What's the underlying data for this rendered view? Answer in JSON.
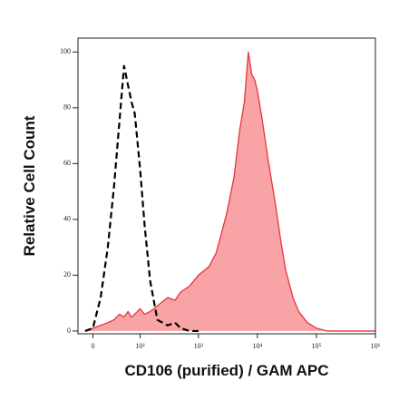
{
  "chart_data": {
    "type": "area",
    "x_label": "CD106 (purified) / GAM APC",
    "y_label": "Relative Cell Count",
    "x": [
      -10,
      0,
      10,
      20,
      30,
      40,
      50,
      60,
      70,
      80,
      100,
      120,
      150,
      200,
      300,
      400,
      500,
      700,
      1000,
      1500,
      2000,
      3000,
      4000,
      5000,
      6000,
      7000,
      8000,
      9000,
      10000,
      12000,
      15000,
      20000,
      25000,
      30000,
      40000,
      50000,
      70000,
      100000,
      150000,
      200000,
      300000,
      1000000
    ],
    "series": [
      {
        "color": "#e8343a",
        "fill": "#f8a4a7",
        "style": "solid",
        "values": [
          0,
          1,
          2,
          3,
          4,
          6,
          5,
          7,
          5,
          6,
          8,
          6,
          7,
          9,
          12,
          11,
          14,
          16,
          20,
          23,
          28,
          42,
          55,
          72,
          82,
          100,
          92,
          90,
          86,
          76,
          62,
          46,
          32,
          22,
          12,
          7,
          3,
          1,
          0,
          0,
          0,
          0
        ]
      },
      {
        "color": "#000000",
        "style": "dashed",
        "values": [
          0,
          1,
          12,
          30,
          52,
          75,
          95,
          88,
          82,
          78,
          58,
          38,
          18,
          4,
          2,
          3,
          1,
          0,
          0,
          null,
          null,
          null,
          null,
          null,
          null,
          null,
          null,
          null,
          null,
          null,
          null,
          null,
          null,
          null,
          null,
          null,
          null,
          null,
          null,
          null,
          null,
          null
        ]
      }
    ],
    "xscale": "asinh",
    "xlim": [
      -20,
      1000000
    ],
    "xticks": [
      0,
      {
        "value": 100,
        "label": "10²"
      },
      {
        "value": 1000,
        "label": "10³"
      },
      {
        "value": 10000,
        "label": "10⁴"
      },
      {
        "value": 100000,
        "label": "10⁵"
      },
      {
        "value": 1000000,
        "label": "10⁶"
      }
    ],
    "ylim": [
      -1,
      105
    ],
    "yticks": [
      0,
      20,
      40,
      60,
      80,
      100
    ]
  }
}
